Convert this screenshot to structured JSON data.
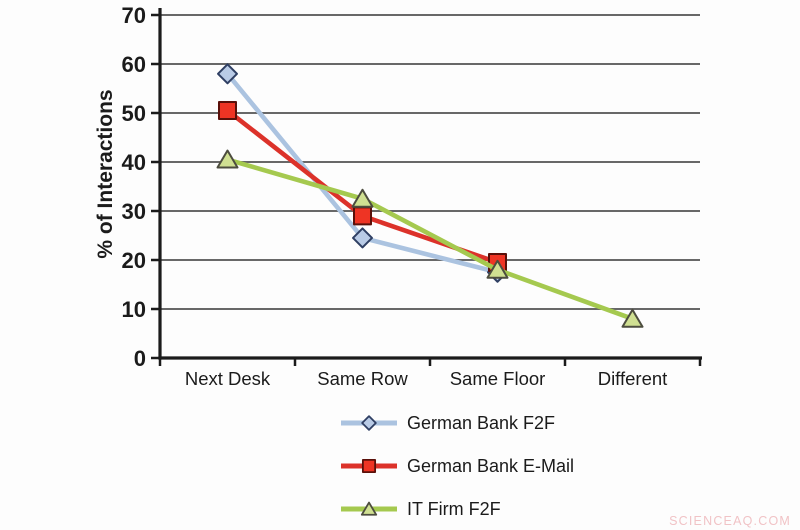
{
  "chart_data": {
    "type": "line",
    "title": "",
    "xlabel": "",
    "ylabel": "% of Interactions",
    "categories": [
      "Next Desk",
      "Same Row",
      "Same Floor",
      "Different"
    ],
    "series": [
      {
        "name": "German Bank F2F",
        "values": [
          58,
          24.5,
          17.5,
          null
        ],
        "line_color": "#abc3e0",
        "marker": "diamond",
        "marker_fill": "#b9cbe6",
        "marker_stroke": "#2f3f63"
      },
      {
        "name": "German Bank E-Mail",
        "values": [
          50.5,
          29,
          19.5,
          null
        ],
        "line_color": "#dc322a",
        "marker": "square",
        "marker_fill": "#ee3424",
        "marker_stroke": "#5a100a"
      },
      {
        "name": "IT Firm F2F",
        "values": [
          40.5,
          32.5,
          18,
          8
        ],
        "line_color": "#a5c94f",
        "marker": "triangle",
        "marker_fill": "#d0e092",
        "marker_stroke": "#4d4d3f"
      }
    ],
    "ylim": [
      0,
      70
    ],
    "ytick_step": 10,
    "grid": true,
    "grid_color": "#686868",
    "axis_color": "#1b1b1b",
    "legend_position": "bottom"
  },
  "watermark": {
    "text": "SCIENCEAQ.COM"
  }
}
